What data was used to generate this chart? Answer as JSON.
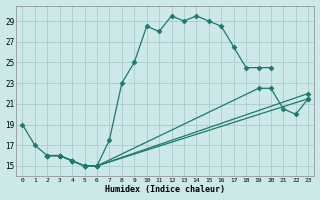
{
  "xlabel": "Humidex (Indice chaleur)",
  "bg_color": "#cce8e8",
  "grid_color": "#aacccc",
  "line_color": "#1a7a6e",
  "xlim": [
    -0.5,
    23.5
  ],
  "ylim": [
    14,
    30.5
  ],
  "yticks": [
    15,
    17,
    19,
    21,
    23,
    25,
    27,
    29
  ],
  "xticks": [
    0,
    1,
    2,
    3,
    4,
    5,
    6,
    7,
    8,
    9,
    10,
    11,
    12,
    13,
    14,
    15,
    16,
    17,
    18,
    19,
    20,
    21,
    22,
    23
  ],
  "lines": [
    {
      "x": [
        0,
        1,
        2,
        3,
        4,
        5,
        6,
        7,
        8,
        9,
        10,
        11,
        12,
        13,
        14,
        15,
        16,
        17,
        18,
        19,
        20
      ],
      "y": [
        19,
        17,
        16,
        16,
        15.5,
        15,
        15,
        17.5,
        23,
        25,
        28.5,
        28,
        29.5,
        29,
        29.5,
        29,
        28.5,
        26.5,
        24.5,
        24.5,
        24.5
      ]
    },
    {
      "x": [
        2,
        3,
        4,
        5,
        6,
        23
      ],
      "y": [
        16,
        16,
        15.5,
        15,
        15,
        21.5
      ]
    },
    {
      "x": [
        2,
        3,
        4,
        5,
        6,
        23
      ],
      "y": [
        16,
        16,
        15.5,
        15,
        15,
        22.0
      ]
    },
    {
      "x": [
        2,
        3,
        4,
        5,
        6,
        19,
        20,
        21,
        22,
        23
      ],
      "y": [
        16,
        16,
        15.5,
        15,
        15,
        22.5,
        22.5,
        20.5,
        20.0,
        21.5
      ]
    }
  ]
}
